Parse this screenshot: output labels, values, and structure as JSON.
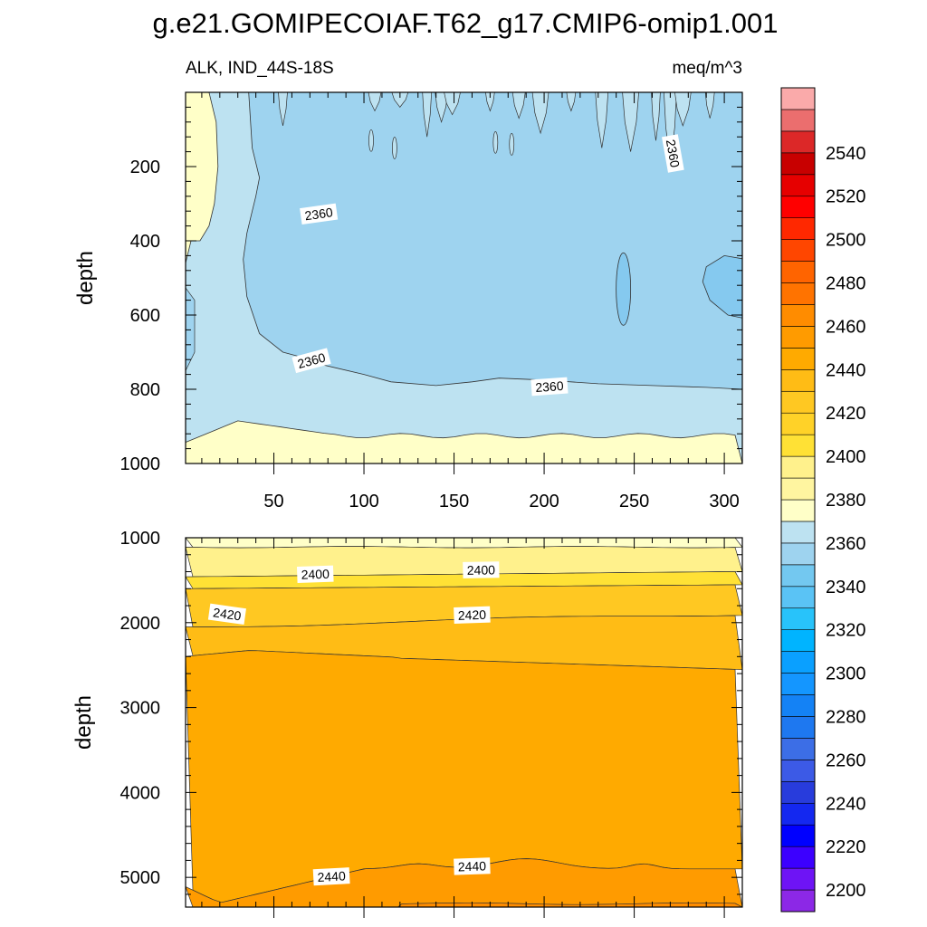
{
  "figure": {
    "title": "g.e21.GOMIPECOIAF.T62_g17.CMIP6-omip1.001",
    "left_subtitle": "ALK, IND_44S-18S",
    "right_subtitle": "meq/m^3"
  },
  "chart_data": [
    {
      "type": "heatmap",
      "panel": "upper",
      "variable": "ALK",
      "region": "IND_44S-18S",
      "units": "meq/m^3",
      "xlabel": "",
      "ylabel": "depth",
      "xlim": [
        1,
        310
      ],
      "ylim": [
        0,
        1000
      ],
      "y_inverted": true,
      "xticks": [
        50,
        100,
        150,
        200,
        250,
        300
      ],
      "yticks": [
        200,
        400,
        600,
        800,
        1000
      ],
      "contour_labels": [
        {
          "text": "2360",
          "x": 75,
          "y": 330,
          "angle": -8
        },
        {
          "text": "2360",
          "x": 71,
          "y": 725,
          "angle": -15
        },
        {
          "text": "2360",
          "x": 203,
          "y": 795,
          "angle": -4
        },
        {
          "text": "2360",
          "x": 271,
          "y": 165,
          "angle": 80
        }
      ],
      "regions": [
        {
          "level": "2360-2370",
          "color": "#bde2f1",
          "description": "background between upper 2360 contour and deep 2380 contour"
        },
        {
          "level": "2350-2360",
          "color": "#9ed3ef",
          "description": "central core, roughly x 40-310, depth 0-800"
        },
        {
          "level": "2340-2350",
          "color": "#85c9ef",
          "description": "small pockets near x 244 and x 300, depth 450-600"
        },
        {
          "level": "2380-2390",
          "color": "#ffffc8",
          "description": "western boundary column and bottom layer below ~930 m"
        }
      ]
    },
    {
      "type": "heatmap",
      "panel": "lower",
      "variable": "ALK",
      "region": "IND_44S-18S",
      "units": "meq/m^3",
      "xlabel": "",
      "ylabel": "depth",
      "xlim": [
        1,
        310
      ],
      "ylim": [
        1000,
        5350
      ],
      "y_inverted": true,
      "yticks": [
        1000,
        2000,
        3000,
        4000,
        5000
      ],
      "contour_labels": [
        {
          "text": "2400",
          "x": 73,
          "y": 1440,
          "angle": -2
        },
        {
          "text": "2400",
          "x": 165,
          "y": 1390,
          "angle": -1
        },
        {
          "text": "2420",
          "x": 24,
          "y": 1910,
          "angle": 8
        },
        {
          "text": "2420",
          "x": 160,
          "y": 1920,
          "angle": -2
        },
        {
          "text": "2440",
          "x": 82,
          "y": 5000,
          "angle": -3
        },
        {
          "text": "2440",
          "x": 160,
          "y": 4880,
          "angle": -2
        }
      ],
      "regions": [
        {
          "level": "2380-2390",
          "color": "#ffffc8",
          "description": "top band near 1000 m"
        },
        {
          "level": "2390-2400",
          "color": "#fff18c",
          "description": "band 1100-1450 m"
        },
        {
          "level": "2400-2410",
          "color": "#ffe135",
          "description": "band 1450-1600 m"
        },
        {
          "level": "2410-2420",
          "color": "#ffc822",
          "description": "band 1600-2000 m"
        },
        {
          "level": "2420-2430",
          "color": "#ffbc15",
          "description": "band 2000-2500 m"
        },
        {
          "level": "2430-2440",
          "color": "#ffaa00",
          "description": "deep core 2500-5000 m"
        },
        {
          "level": "2440-2450",
          "color": "#ff9b00",
          "description": "abyssal layer below ~4800 m"
        },
        {
          "level": "2450-2460",
          "color": "#ff8c00",
          "description": "bottom pocket near 5300 m"
        }
      ]
    },
    {
      "type": "colorbar",
      "levels": [
        2190,
        2200,
        2210,
        2220,
        2230,
        2240,
        2250,
        2260,
        2270,
        2280,
        2290,
        2300,
        2310,
        2320,
        2330,
        2340,
        2350,
        2360,
        2370,
        2380,
        2390,
        2400,
        2410,
        2420,
        2430,
        2440,
        2450,
        2460,
        2470,
        2480,
        2490,
        2500,
        2510,
        2520,
        2530,
        2540,
        2550,
        2560
      ],
      "tick_labels": [
        2200,
        2220,
        2240,
        2260,
        2280,
        2300,
        2320,
        2340,
        2360,
        2380,
        2400,
        2420,
        2440,
        2460,
        2480,
        2500,
        2520,
        2540
      ],
      "colors_bottom_to_top": [
        "#8c28e6",
        "#6e14f5",
        "#3c00ff",
        "#0000ff",
        "#1428f0",
        "#283cdc",
        "#3c5ae6",
        "#3c6ee6",
        "#1e78f0",
        "#1482f5",
        "#1496ff",
        "#0aa0ff",
        "#00b4ff",
        "#28c3fa",
        "#5ac3f5",
        "#73c8f0",
        "#9ed3ef",
        "#bde2f1",
        "#ffffc8",
        "#fff5a0",
        "#fff18c",
        "#ffe135",
        "#ffd228",
        "#ffc822",
        "#ffbc15",
        "#ffaa00",
        "#ff9b00",
        "#ff8c00",
        "#ff7300",
        "#ff6400",
        "#ff4600",
        "#ff2800",
        "#ff0000",
        "#e60000",
        "#c80000",
        "#dc2828",
        "#eb6e6e",
        "#faaaaa"
      ]
    }
  ]
}
